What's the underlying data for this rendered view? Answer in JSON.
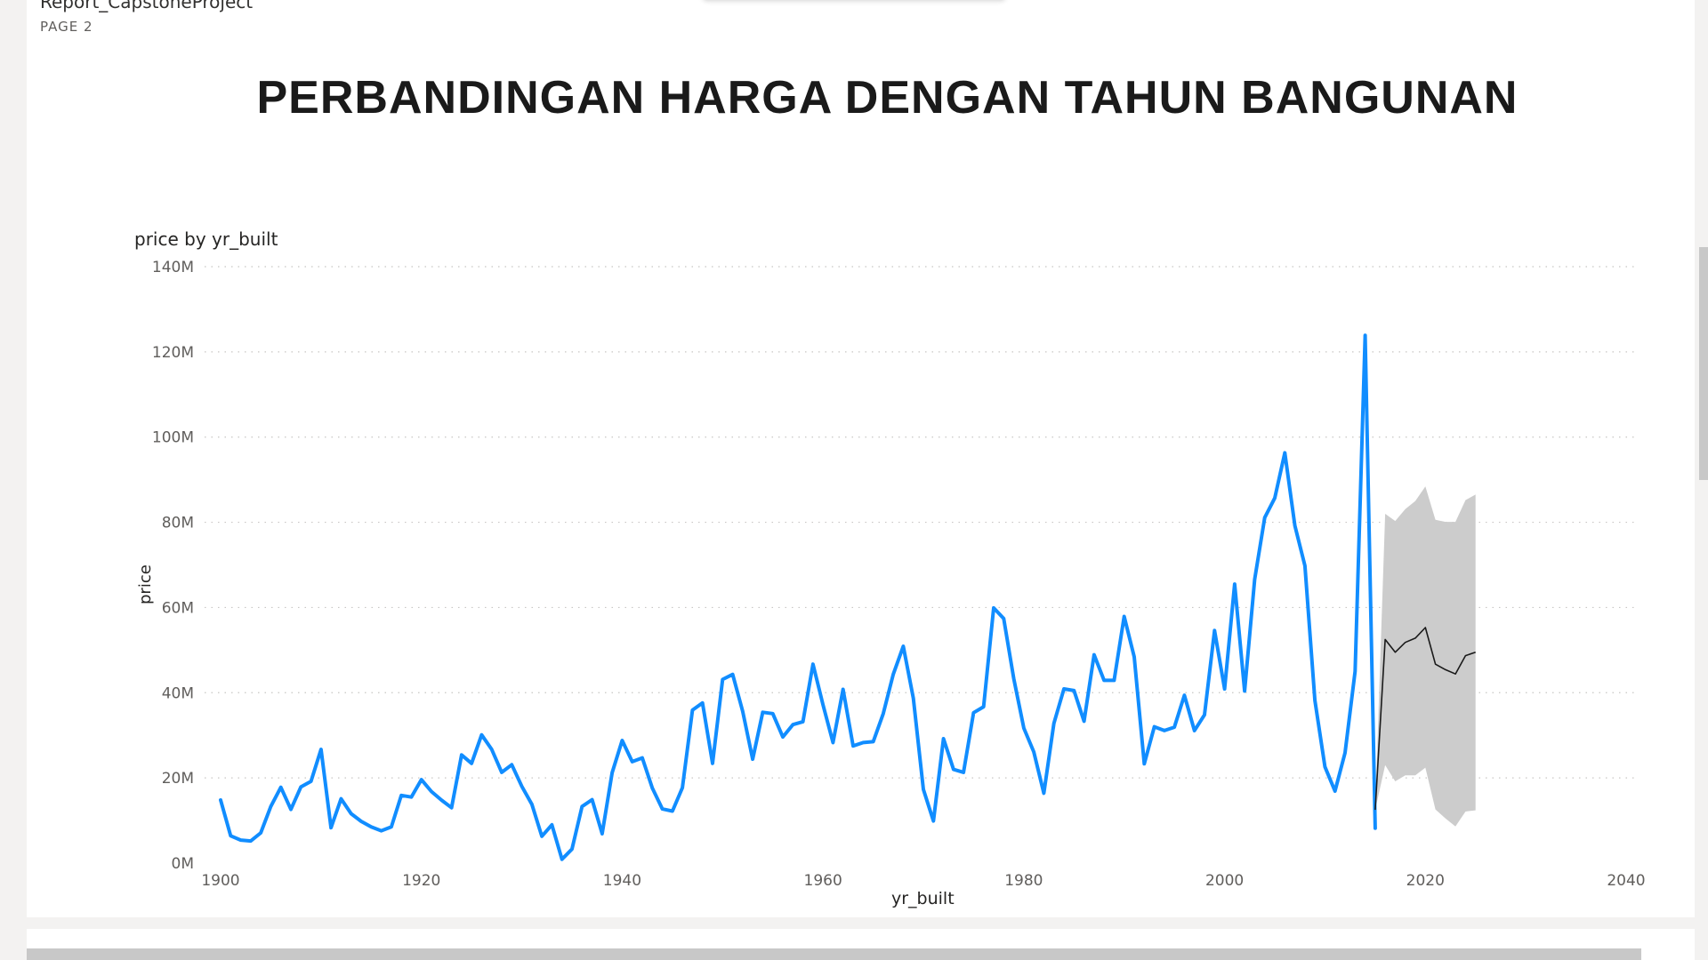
{
  "report": {
    "name": "Report_CapstoneProject",
    "page_label": "PAGE 2"
  },
  "page_title": "PERBANDINGAN HARGA DENGAN TAHUN BANGUNAN",
  "chart_data": {
    "type": "line",
    "title": "price by yr_built",
    "xlabel": "yr_built",
    "ylabel": "price",
    "xlim": [
      1900,
      2040
    ],
    "ylim": [
      0,
      140
    ],
    "x_ticks": [
      1900,
      1920,
      1940,
      1960,
      1980,
      2000,
      2020,
      2040
    ],
    "x_tick_labels": [
      "1900",
      "1920",
      "1940",
      "1960",
      "1980",
      "2000",
      "2020",
      "2040"
    ],
    "y_ticks": [
      0,
      20,
      40,
      60,
      80,
      100,
      120,
      140
    ],
    "y_tick_labels": [
      "0M",
      "20M",
      "40M",
      "60M",
      "80M",
      "100M",
      "120M",
      "140M"
    ],
    "grid": true,
    "colors": {
      "series": "#118dff",
      "forecast": "#1a1a1a",
      "band": "#cccccc",
      "grid": "#c8c6c4"
    },
    "series": [
      {
        "x": [
          1900,
          1901,
          1902,
          1903,
          1904,
          1905,
          1906,
          1907,
          1908,
          1909,
          1910,
          1911,
          1912,
          1913,
          1914,
          1915,
          1916,
          1917,
          1918,
          1919,
          1920,
          1921,
          1922,
          1923,
          1924,
          1925,
          1926,
          1927,
          1928,
          1929,
          1930,
          1931,
          1932,
          1933,
          1934,
          1935,
          1936,
          1937,
          1938,
          1939,
          1940,
          1941,
          1942,
          1943,
          1944,
          1945,
          1946,
          1947,
          1948,
          1949,
          1950,
          1951,
          1952,
          1953,
          1954,
          1955,
          1956,
          1957,
          1958,
          1959,
          1960,
          1961,
          1962,
          1963,
          1964,
          1965,
          1966,
          1967,
          1968,
          1969,
          1970,
          1971,
          1972,
          1973,
          1974,
          1975,
          1976,
          1977,
          1978,
          1979,
          1980,
          1981,
          1982,
          1983,
          1984,
          1985,
          1986,
          1987,
          1988,
          1989,
          1990,
          1991,
          1992,
          1993,
          1994,
          1995,
          1996,
          1997,
          1998,
          1999,
          2000,
          2001,
          2002,
          2003,
          2004,
          2005,
          2006,
          2007,
          2008,
          2009,
          2010,
          2011,
          2012,
          2013,
          2014,
          2015
        ],
        "values": [
          14.8,
          6.4,
          5.4,
          5.2,
          7.1,
          13.3,
          17.8,
          12.6,
          17.9,
          19.2,
          26.7,
          8.3,
          15.1,
          11.6,
          9.8,
          8.5,
          7.6,
          8.5,
          15.9,
          15.5,
          19.6,
          16.8,
          14.8,
          13.0,
          25.4,
          23.4,
          30.1,
          26.7,
          21.3,
          23.1,
          18.0,
          13.8,
          6.3,
          9.0,
          0.9,
          3.3,
          13.3,
          14.9,
          6.9,
          21.2,
          28.8,
          23.8,
          24.7,
          17.6,
          12.7,
          12.2,
          17.7,
          35.9,
          37.6,
          23.4,
          43.1,
          44.3,
          35.6,
          24.4,
          35.4,
          35.1,
          29.6,
          32.5,
          33.2,
          46.7,
          37.2,
          28.3,
          40.8,
          27.5,
          28.3,
          28.5,
          35.1,
          44.3,
          50.9,
          38.7,
          17.3,
          9.9,
          29.2,
          22.0,
          21.3,
          35.3,
          36.7,
          59.9,
          57.4,
          43.3,
          31.7,
          26.1,
          16.4,
          32.8,
          40.9,
          40.5,
          33.3,
          48.9,
          42.9,
          42.9,
          57.9,
          48.4,
          23.3,
          32.0,
          31.1,
          31.9,
          39.4,
          31.1,
          34.8,
          54.6,
          40.9,
          65.5,
          40.4,
          66.6,
          81.1,
          85.7,
          96.3,
          79.2,
          69.8,
          38.2,
          22.6,
          16.9,
          25.9,
          45.0,
          123.9,
          8.2
        ]
      }
    ],
    "forecast": {
      "x": [
        2015,
        2016,
        2017,
        2018,
        2019,
        2020,
        2021,
        2022,
        2023,
        2024,
        2025
      ],
      "values": [
        12.5,
        52.5,
        49.5,
        51.8,
        52.8,
        55.3,
        46.7,
        45.4,
        44.4,
        48.7,
        49.5
      ],
      "upper": [
        12.5,
        82.0,
        80.3,
        83.1,
        85.0,
        88.4,
        80.6,
        80.1,
        80.1,
        85.2,
        86.5
      ],
      "lower": [
        12.5,
        23.0,
        19.2,
        20.6,
        20.6,
        22.4,
        12.6,
        10.5,
        8.6,
        12.1,
        12.4
      ]
    }
  }
}
